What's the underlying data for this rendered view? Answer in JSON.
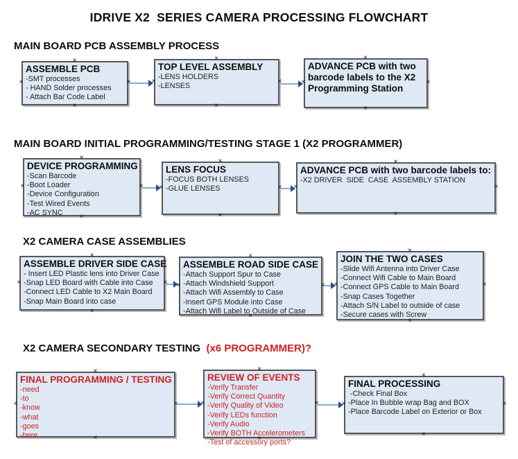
{
  "title": "IDRIVE X2  SERIES CAMERA PROCESSING FLOWCHART",
  "colors": {
    "box_fill": "#dfe9f5",
    "box_border": "#575757",
    "arrow_line": "#8ca9cf",
    "arrow_head": "#2d4e8e",
    "red_text": "#cc2222",
    "text": "#111111"
  },
  "sections": [
    {
      "header": "MAIN BOARD PCB ASSEMBLY PROCESS",
      "boxes": [
        {
          "title": "ASSEMBLE PCB",
          "lines": [
            "-SMT processes",
            "- HAND Solder processes",
            "- Attach Bar Code Label"
          ]
        },
        {
          "title": "TOP LEVEL ASSEMBLY",
          "lines": [
            "-LENS HOLDERS",
            "-LENSES"
          ]
        },
        {
          "title": "ADVANCE PCB with two barcode labels to the X2 Programming Station",
          "lines": []
        }
      ]
    },
    {
      "header": "MAIN BOARD INITIAL PROGRAMMING/TESTING STAGE 1 (X2 PROGRAMMER)",
      "boxes": [
        {
          "title": "DEVICE PROGRAMMING",
          "lines": [
            "-Scan Barcode",
            "-Boot Loader",
            "-Device Configuration",
            "-Test Wired Events",
            "-AC SYNC"
          ]
        },
        {
          "title": "LENS FOCUS",
          "lines": [
            "-FOCUS BOTH LENSES",
            "-GLUE LENSES"
          ]
        },
        {
          "title": "ADVANCE PCB with two barcode labels to:",
          "lines": [
            "-X2 DRIVER  SIDE  CASE  ASSEMBLY STATION"
          ]
        }
      ]
    },
    {
      "header": "X2 CAMERA CASE ASSEMBLIES",
      "boxes": [
        {
          "title": "ASSEMBLE DRIVER SIDE CASE",
          "lines": [
            "- Insert LED Plastic lens into Driver Case",
            "-Snap LED Board with Cable into Case",
            "-Connect LED Cable to X2 Main Board",
            "-Snap Main Board into case"
          ]
        },
        {
          "title": "ASSEMBLE ROAD SIDE CASE",
          "lines": [
            "-Attach Support Spur to Case",
            "-Attach Windshield Support",
            "-Attach Wifi Assembly to Case",
            "-Insert GPS Module into Case",
            "-Attach Wifi Label to Outside of Case"
          ]
        },
        {
          "title": "JOIN THE TWO CASES",
          "lines": [
            "-Slide Wifi Antenna into Driver Case",
            "-Connect Wifi Cable to Main Board",
            "-Connect GPS Cable to Main Board",
            "-Snap Cases Together",
            "-Attach S/N Label to outside of case",
            "-Secure cases with Screw"
          ]
        }
      ]
    },
    {
      "header": "X2 CAMERA SECONDARY TESTING ",
      "header_suffix": " (x6 PROGRAMMER)?",
      "boxes": [
        {
          "title": "FINAL PROGRAMMING / TESTING",
          "lines": [
            "-need",
            "-to",
            "-know",
            "-what",
            "-goes",
            "-here"
          ]
        },
        {
          "title": "REVIEW OF EVENTS",
          "lines": [
            "-Verify Transfer",
            "-Verify Correct Quantity",
            "-Verify Quality of Video",
            "-Verify LEDs function",
            "-Verify Audio",
            "-Verify BOTH Accelerometers",
            "-Test of accessory ports?"
          ]
        },
        {
          "title": "FINAL PROCESSING",
          "lines": [
            " -Check Final Box",
            "-Place In Bubble wrap Bag and BOX",
            "-Place Barcode Label on Exterior or Box"
          ]
        }
      ]
    }
  ]
}
